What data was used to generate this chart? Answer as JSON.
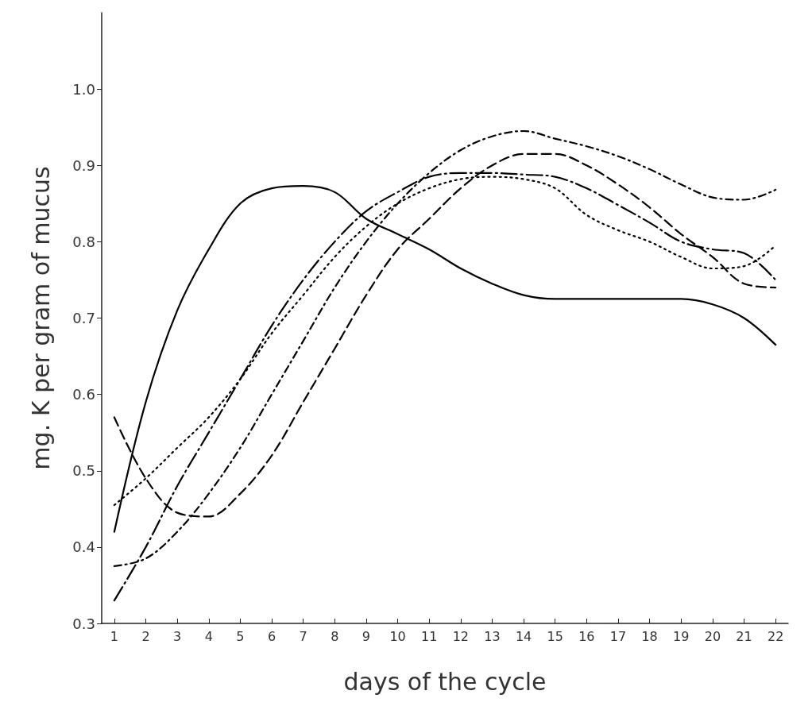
{
  "chart_data": {
    "type": "line",
    "xlabel": "days of the cycle",
    "ylabel": "mg. K per gram of mucus",
    "x": [
      1,
      2,
      3,
      4,
      5,
      6,
      7,
      8,
      9,
      10,
      11,
      12,
      13,
      14,
      15,
      16,
      17,
      18,
      19,
      20,
      21,
      22
    ],
    "xlim": [
      0.6,
      22.4
    ],
    "xticks": [
      1,
      2,
      3,
      4,
      5,
      6,
      7,
      8,
      9,
      10,
      11,
      12,
      13,
      14,
      15,
      16,
      17,
      18,
      19,
      20,
      21,
      22
    ],
    "ylim": [
      0.3,
      1.1
    ],
    "yticks": [
      0.3,
      0.4,
      0.5,
      0.6,
      0.7,
      0.8,
      0.9,
      {
        "value": 1,
        "label": "1.0"
      }
    ],
    "grid": false,
    "marker": "none",
    "series": [
      {
        "color": "#000000",
        "line_style": "solid",
        "values": [
          0.42,
          0.59,
          0.71,
          0.79,
          0.85,
          0.87,
          0.873,
          0.865,
          0.83,
          0.81,
          0.79,
          0.765,
          0.745,
          0.73,
          0.725,
          0.725,
          0.725,
          0.725,
          0.725,
          0.718,
          0.7,
          0.665
        ]
      },
      {
        "color": "#000000",
        "line_style": "dashed",
        "values": [
          0.57,
          0.49,
          0.445,
          0.44,
          0.47,
          0.52,
          0.59,
          0.66,
          0.73,
          0.79,
          0.83,
          0.87,
          0.9,
          0.915,
          0.915,
          0.9,
          0.875,
          0.845,
          0.81,
          0.78,
          0.745,
          0.74
        ]
      },
      {
        "color": "#000000",
        "line_style": "longdashdot",
        "values": [
          0.33,
          0.4,
          0.48,
          0.55,
          0.62,
          0.69,
          0.75,
          0.8,
          0.84,
          0.865,
          0.885,
          0.89,
          0.89,
          0.888,
          0.885,
          0.87,
          0.848,
          0.825,
          0.8,
          0.79,
          0.785,
          0.75
        ]
      },
      {
        "color": "#000000",
        "line_style": "dashdot",
        "values": [
          0.375,
          0.385,
          0.42,
          0.47,
          0.53,
          0.6,
          0.67,
          0.74,
          0.8,
          0.85,
          0.89,
          0.92,
          0.938,
          0.945,
          0.935,
          0.925,
          0.912,
          0.895,
          0.875,
          0.858,
          0.855,
          0.868
        ]
      },
      {
        "color": "#000000",
        "line_style": "dotted",
        "values": [
          0.455,
          0.49,
          0.53,
          0.57,
          0.62,
          0.68,
          0.73,
          0.78,
          0.82,
          0.85,
          0.87,
          0.882,
          0.885,
          0.882,
          0.87,
          0.835,
          0.815,
          0.8,
          0.78,
          0.765,
          0.768,
          0.795
        ]
      }
    ]
  }
}
